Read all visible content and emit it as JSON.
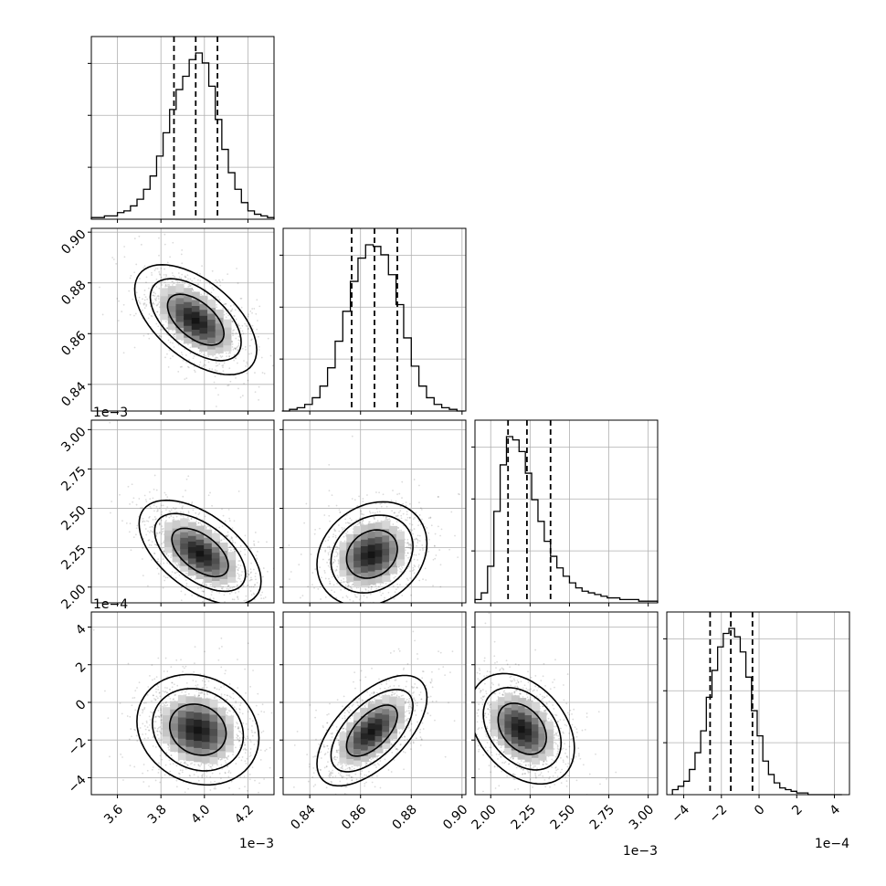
{
  "chart_data": {
    "type": "corner",
    "grid": true,
    "params": [
      {
        "range": [
          3.48,
          4.32
        ],
        "ticks": [
          3.6,
          3.8,
          4.0,
          4.2
        ],
        "tick_labels": [
          "3.6",
          "3.8",
          "4.0",
          "4.2"
        ],
        "multiplier": "1e−3",
        "quantiles": [
          3.86,
          3.96,
          4.06
        ],
        "hist_centers": [
          3.495,
          3.525,
          3.555,
          3.585,
          3.615,
          3.645,
          3.675,
          3.705,
          3.735,
          3.765,
          3.795,
          3.825,
          3.855,
          3.885,
          3.915,
          3.945,
          3.975,
          4.005,
          4.035,
          4.065,
          4.095,
          4.125,
          4.155,
          4.185,
          4.215,
          4.245,
          4.275,
          4.305
        ],
        "hist_counts": [
          1,
          1,
          2,
          2,
          4,
          5,
          8,
          12,
          18,
          26,
          38,
          52,
          66,
          78,
          86,
          96,
          100,
          94,
          80,
          60,
          42,
          28,
          18,
          10,
          5,
          3,
          2,
          1
        ]
      },
      {
        "range": [
          0.8295,
          0.9015
        ],
        "ticks": [
          0.84,
          0.86,
          0.88,
          0.9
        ],
        "tick_labels": [
          "0.84",
          "0.86",
          "0.88",
          "0.90"
        ],
        "multiplier": "",
        "quantiles": [
          0.8565,
          0.8655,
          0.8745
        ],
        "hist_centers": [
          0.8305,
          0.8335,
          0.8365,
          0.8395,
          0.8425,
          0.8455,
          0.8485,
          0.8515,
          0.8545,
          0.8575,
          0.8605,
          0.8635,
          0.8665,
          0.8695,
          0.8725,
          0.8755,
          0.8785,
          0.8815,
          0.8845,
          0.8875,
          0.8905,
          0.8935,
          0.8965,
          0.8995
        ],
        "hist_counts": [
          0,
          1,
          2,
          4,
          8,
          15,
          26,
          42,
          60,
          78,
          92,
          100,
          99,
          94,
          82,
          64,
          44,
          27,
          15,
          8,
          4,
          2,
          1,
          0
        ]
      },
      {
        "range": [
          1.9,
          3.06
        ],
        "ticks": [
          2.0,
          2.25,
          2.5,
          2.75,
          3.0
        ],
        "tick_labels": [
          "2.00",
          "2.25",
          "2.50",
          "2.75",
          "3.00"
        ],
        "multiplier": "1e−3",
        "quantiles": [
          2.11,
          2.23,
          2.38
        ],
        "hist_centers": [
          1.92,
          1.96,
          2.0,
          2.04,
          2.08,
          2.12,
          2.16,
          2.2,
          2.24,
          2.28,
          2.32,
          2.36,
          2.4,
          2.44,
          2.48,
          2.52,
          2.56,
          2.6,
          2.64,
          2.68,
          2.72,
          2.76,
          2.8,
          2.84,
          2.88,
          2.92,
          2.96,
          3.0,
          3.04
        ],
        "hist_counts": [
          2,
          6,
          22,
          55,
          83,
          100,
          98,
          91,
          78,
          62,
          49,
          37,
          28,
          21,
          16,
          12,
          9,
          7,
          6,
          5,
          4,
          3,
          3,
          2,
          2,
          2,
          1,
          1,
          1
        ]
      },
      {
        "range": [
          -4.9,
          4.8
        ],
        "ticks": [
          -4,
          -2,
          0,
          2,
          4
        ],
        "tick_labels": [
          "−4",
          "−2",
          "0",
          "2",
          "4"
        ],
        "multiplier": "1e−4",
        "quantiles": [
          -2.6,
          -1.5,
          -0.35
        ],
        "hist_centers": [
          -4.45,
          -4.15,
          -3.85,
          -3.55,
          -3.25,
          -2.95,
          -2.65,
          -2.35,
          -2.05,
          -1.75,
          -1.45,
          -1.15,
          -0.85,
          -0.55,
          -0.25,
          0.05,
          0.35,
          0.65,
          0.95,
          1.25,
          1.55,
          1.85,
          2.15,
          2.45,
          2.75,
          3.05,
          3.35,
          3.65,
          3.95,
          4.25
        ],
        "hist_counts": [
          3,
          5,
          8,
          15,
          25,
          38,
          58,
          74,
          88,
          96,
          99,
          94,
          85,
          70,
          50,
          35,
          20,
          12,
          7,
          4,
          3,
          2,
          1,
          1,
          0,
          0,
          0,
          0,
          0,
          0
        ]
      }
    ],
    "pairs": [
      {
        "row": 1,
        "col": 0,
        "center": [
          3.96,
          0.8655
        ],
        "sigma": [
          0.11,
          0.0085
        ],
        "corr": -0.55,
        "contours": [
          {
            "level": 0.5,
            "scale": 1.18
          },
          {
            "level": 1.0,
            "scale": 1.9
          },
          {
            "level": 1.5,
            "scale": 2.55
          }
        ]
      },
      {
        "row": 2,
        "col": 0,
        "center": [
          3.98,
          2.22
        ],
        "sigma": [
          0.11,
          0.13
        ],
        "corr": -0.55,
        "contours": [
          {
            "level": 0.5,
            "scale": 1.18
          },
          {
            "level": 1.0,
            "scale": 1.9
          },
          {
            "level": 1.5,
            "scale": 2.55
          }
        ]
      },
      {
        "row": 2,
        "col": 1,
        "center": [
          0.8645,
          2.21
        ],
        "sigma": [
          0.0085,
          0.13
        ],
        "corr": 0.2,
        "contours": [
          {
            "level": 0.5,
            "scale": 1.18
          },
          {
            "level": 1.0,
            "scale": 1.9
          },
          {
            "level": 1.5,
            "scale": 2.55
          }
        ]
      },
      {
        "row": 3,
        "col": 0,
        "center": [
          3.97,
          -1.45
        ],
        "sigma": [
          0.11,
          1.15
        ],
        "corr": -0.15,
        "contours": [
          {
            "level": 0.5,
            "scale": 1.18
          },
          {
            "level": 1.0,
            "scale": 1.9
          },
          {
            "level": 1.5,
            "scale": 2.55
          }
        ]
      },
      {
        "row": 3,
        "col": 1,
        "center": [
          0.8645,
          -1.5
        ],
        "sigma": [
          0.0085,
          1.15
        ],
        "corr": 0.6,
        "contours": [
          {
            "level": 0.5,
            "scale": 1.18
          },
          {
            "level": 1.0,
            "scale": 1.9
          },
          {
            "level": 1.5,
            "scale": 2.55
          }
        ]
      },
      {
        "row": 3,
        "col": 2,
        "center": [
          2.2,
          -1.4
        ],
        "sigma": [
          0.13,
          1.15
        ],
        "corr": -0.35,
        "contours": [
          {
            "level": 0.5,
            "scale": 1.18
          },
          {
            "level": 1.0,
            "scale": 1.9
          },
          {
            "level": 1.5,
            "scale": 2.55
          }
        ]
      }
    ]
  },
  "colors": {
    "line": "#000000",
    "grid": "#b0b0b0",
    "scatter": "#000000",
    "background": "#ffffff"
  }
}
